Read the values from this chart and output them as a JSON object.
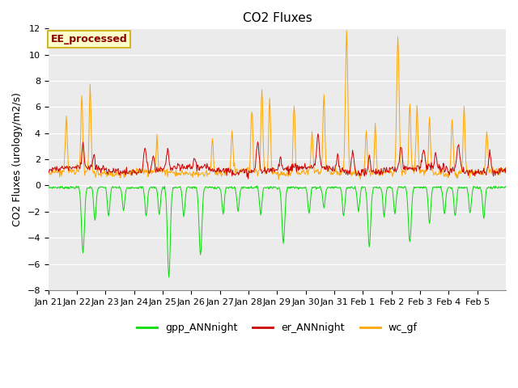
{
  "title": "CO2 Fluxes",
  "ylabel": "CO2 Fluxes (urology/m2/s)",
  "ylim": [
    -8,
    12
  ],
  "yticks": [
    -8,
    -6,
    -4,
    -2,
    0,
    2,
    4,
    6,
    8,
    10,
    12
  ],
  "annotation": "EE_processed",
  "annotation_color": "#8B0000",
  "annotation_bg": "#FFFFCC",
  "annotation_border": "#CCAA00",
  "background_color": "#EBEBEB",
  "line_colors": {
    "gpp_ANNnight": "#00DD00",
    "er_ANNnight": "#CC0000",
    "wc_gf": "#FFA500"
  },
  "legend_labels": [
    "gpp_ANNnight",
    "er_ANNnight",
    "wc_gf"
  ],
  "x_tick_labels": [
    "Jan 21",
    "Jan 22",
    "Jan 23",
    "Jan 24",
    "Jan 25",
    "Jan 26",
    "Jan 27",
    "Jan 28",
    "Jan 29",
    "Jan 30",
    "Jan 31",
    "Feb 1",
    "Feb 2",
    "Feb 3",
    "Feb 4",
    "Feb 5"
  ],
  "title_fontsize": 11,
  "axis_fontsize": 9,
  "tick_fontsize": 8,
  "legend_fontsize": 9,
  "grid_color": "#FFFFFF",
  "fig_bg": "#FFFFFF"
}
